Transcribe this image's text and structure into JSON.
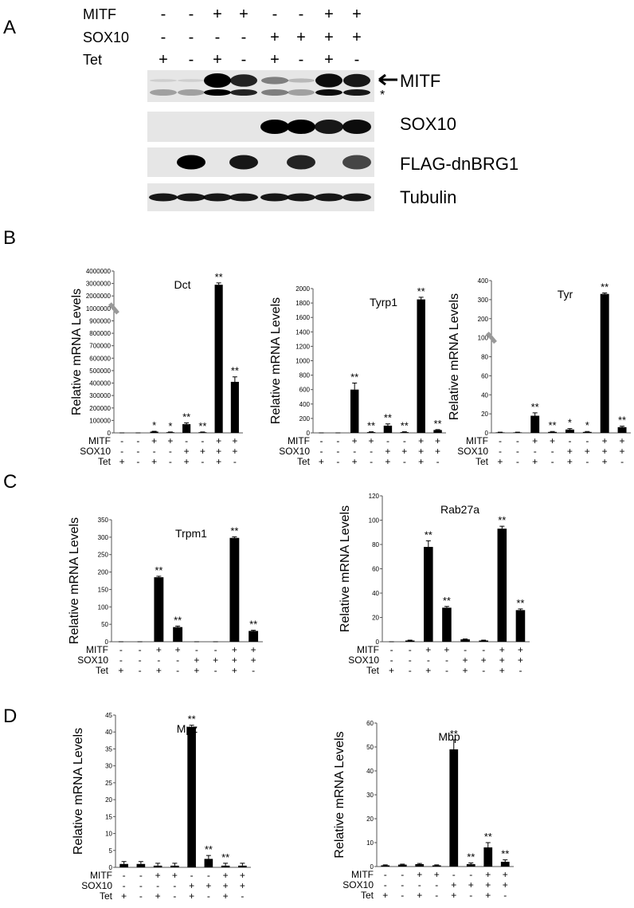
{
  "panels": [
    "A",
    "B",
    "C",
    "D"
  ],
  "blot": {
    "rows": [
      {
        "name": "MITF",
        "signs": [
          "-",
          "-",
          "+",
          "+",
          "-",
          "-",
          "+",
          "+"
        ]
      },
      {
        "name": "SOX10",
        "signs": [
          "-",
          "-",
          "-",
          "-",
          "+",
          "+",
          "+",
          "+"
        ]
      },
      {
        "name": "Tet",
        "signs": [
          "+",
          "-",
          "+",
          "-",
          "+",
          "-",
          "+",
          "-"
        ]
      }
    ],
    "bands": [
      "MITF",
      "SOX10",
      "FLAG-dnBRG1",
      "Tubulin"
    ],
    "nonspecific_mark": "*"
  },
  "chart_data": [
    {
      "type": "bar",
      "title": "Dct",
      "y_label": "Relative mRNA Levels",
      "color": "#000000",
      "axis_break": true,
      "conditions": [
        {
          "name": "MITF",
          "signs": [
            "-",
            "-",
            "+",
            "+",
            "-",
            "-",
            "+",
            "+"
          ]
        },
        {
          "name": "SOX10",
          "signs": [
            "-",
            "-",
            "-",
            "-",
            "+",
            "+",
            "+",
            "+"
          ]
        },
        {
          "name": "Tet",
          "signs": [
            "+",
            "-",
            "+",
            "-",
            "+",
            "-",
            "+",
            "-"
          ]
        }
      ],
      "values": [
        0,
        0,
        10000,
        5000,
        70000,
        5000,
        2900000,
        410000
      ],
      "errors": [
        0,
        0,
        3000,
        2000,
        10000,
        2000,
        150000,
        40000
      ],
      "significance": [
        null,
        null,
        "*",
        "*",
        "**",
        "**",
        "**",
        "**"
      ],
      "ylim": [
        0,
        4000000
      ],
      "yticks": [
        0,
        100000,
        200000,
        300000,
        400000,
        500000,
        600000,
        700000,
        800000,
        900000,
        1000000,
        2000000,
        3000000,
        4000000
      ]
    },
    {
      "type": "bar",
      "title": "Tyrp1",
      "y_label": "Relative mRNA Levels",
      "color": "#000000",
      "axis_break": false,
      "conditions": [
        {
          "name": "MITF",
          "signs": [
            "-",
            "-",
            "+",
            "+",
            "-",
            "-",
            "+",
            "+"
          ]
        },
        {
          "name": "SOX10",
          "signs": [
            "-",
            "-",
            "-",
            "-",
            "+",
            "+",
            "+",
            "+"
          ]
        },
        {
          "name": "Tet",
          "signs": [
            "+",
            "-",
            "+",
            "-",
            "+",
            "-",
            "+",
            "-"
          ]
        }
      ],
      "values": [
        0,
        0,
        600,
        10,
        100,
        10,
        1850,
        40
      ],
      "errors": [
        0,
        0,
        90,
        5,
        25,
        5,
        30,
        5
      ],
      "significance": [
        null,
        null,
        "**",
        "**",
        "**",
        "**",
        "**",
        "**"
      ],
      "ylim": [
        0,
        2000
      ],
      "yticks": [
        0,
        200,
        400,
        600,
        800,
        1000,
        1200,
        1400,
        1600,
        1800,
        2000
      ]
    },
    {
      "type": "bar",
      "title": "Tyr",
      "y_label": "Relative mRNA Levels",
      "color": "#000000",
      "axis_break": true,
      "conditions": [
        {
          "name": "MITF",
          "signs": [
            "-",
            "-",
            "+",
            "+",
            "-",
            "-",
            "+",
            "+"
          ]
        },
        {
          "name": "SOX10",
          "signs": [
            "-",
            "-",
            "-",
            "-",
            "+",
            "+",
            "+",
            "+"
          ]
        },
        {
          "name": "Tet",
          "signs": [
            "+",
            "-",
            "+",
            "-",
            "+",
            "-",
            "+",
            "-"
          ]
        }
      ],
      "values": [
        0.5,
        0.5,
        18,
        1,
        3.5,
        1,
        330,
        6
      ],
      "errors": [
        0.2,
        0.2,
        3,
        0.5,
        1,
        0.5,
        5,
        1
      ],
      "significance": [
        null,
        null,
        "**",
        "**",
        "*",
        "*",
        "**",
        "**"
      ],
      "ylim": [
        0,
        400
      ],
      "yticks": [
        0,
        20,
        40,
        60,
        80,
        100,
        200,
        300,
        400
      ]
    },
    {
      "type": "bar",
      "title": "Trpm1",
      "y_label": "Relative mRNA Levels",
      "color": "#000000",
      "axis_break": false,
      "conditions": [
        {
          "name": "MITF",
          "signs": [
            "-",
            "-",
            "+",
            "+",
            "-",
            "-",
            "+",
            "+"
          ]
        },
        {
          "name": "SOX10",
          "signs": [
            "-",
            "-",
            "-",
            "-",
            "+",
            "+",
            "+",
            "+"
          ]
        },
        {
          "name": "Tet",
          "signs": [
            "+",
            "-",
            "+",
            "-",
            "+",
            "-",
            "+",
            "-"
          ]
        }
      ],
      "values": [
        0,
        0,
        185,
        42,
        0,
        0,
        298,
        31
      ],
      "errors": [
        0,
        0,
        3,
        3,
        0,
        0,
        3,
        2
      ],
      "significance": [
        null,
        null,
        "**",
        "**",
        null,
        null,
        "**",
        "**"
      ],
      "ylim": [
        0,
        350
      ],
      "yticks": [
        0,
        50,
        100,
        150,
        200,
        250,
        300,
        350
      ]
    },
    {
      "type": "bar",
      "title": "Rab27a",
      "y_label": "Relative mRNA Levels",
      "color": "#000000",
      "axis_break": false,
      "conditions": [
        {
          "name": "MITF",
          "signs": [
            "-",
            "-",
            "+",
            "+",
            "-",
            "-",
            "+",
            "+"
          ]
        },
        {
          "name": "SOX10",
          "signs": [
            "-",
            "-",
            "-",
            "-",
            "+",
            "+",
            "+",
            "+"
          ]
        },
        {
          "name": "Tet",
          "signs": [
            "+",
            "-",
            "+",
            "-",
            "+",
            "-",
            "+",
            "-"
          ]
        }
      ],
      "values": [
        0,
        1,
        78,
        28,
        2,
        1,
        93,
        26
      ],
      "errors": [
        0,
        0.3,
        5,
        1,
        0.3,
        0.3,
        2,
        1
      ],
      "significance": [
        null,
        null,
        "**",
        "**",
        null,
        null,
        "**",
        "**"
      ],
      "ylim": [
        0,
        120
      ],
      "yticks": [
        0,
        20,
        40,
        60,
        80,
        100,
        120
      ]
    },
    {
      "type": "bar",
      "title": "Mpz",
      "y_label": "Relative mRNA Levels",
      "color": "#000000",
      "axis_break": false,
      "conditions": [
        {
          "name": "MITF",
          "signs": [
            "-",
            "-",
            "+",
            "+",
            "-",
            "-",
            "+",
            "+"
          ]
        },
        {
          "name": "SOX10",
          "signs": [
            "-",
            "-",
            "-",
            "-",
            "+",
            "+",
            "+",
            "+"
          ]
        },
        {
          "name": "Tet",
          "signs": [
            "+",
            "-",
            "+",
            "-",
            "+",
            "-",
            "+",
            "-"
          ]
        }
      ],
      "values": [
        1,
        1,
        0.5,
        0.5,
        41.5,
        2.5,
        0.5,
        0.5
      ],
      "errors": [
        0.7,
        0.7,
        0.7,
        0.7,
        0.5,
        1,
        0.7,
        0.7
      ],
      "significance": [
        null,
        null,
        null,
        null,
        "**",
        "**",
        "**",
        null
      ],
      "ylim": [
        0,
        45
      ],
      "yticks": [
        0,
        5,
        10,
        15,
        20,
        25,
        30,
        35,
        40,
        45
      ]
    },
    {
      "type": "bar",
      "title": "Mbp",
      "y_label": "Relative mRNA Levels",
      "color": "#000000",
      "axis_break": false,
      "conditions": [
        {
          "name": "MITF",
          "signs": [
            "-",
            "-",
            "+",
            "+",
            "-",
            "-",
            "+",
            "+"
          ]
        },
        {
          "name": "SOX10",
          "signs": [
            "-",
            "-",
            "-",
            "-",
            "+",
            "+",
            "+",
            "+"
          ]
        },
        {
          "name": "Tet",
          "signs": [
            "+",
            "-",
            "+",
            "-",
            "+",
            "-",
            "+",
            "-"
          ]
        }
      ],
      "values": [
        0.5,
        0.8,
        1,
        0.5,
        49,
        1,
        8,
        2
      ],
      "errors": [
        0.2,
        0.2,
        0.3,
        0.2,
        4,
        0.5,
        2,
        0.8
      ],
      "significance": [
        null,
        null,
        null,
        null,
        "**",
        "**",
        "**",
        "**"
      ],
      "ylim": [
        0,
        60
      ],
      "yticks": [
        0,
        10,
        20,
        30,
        40,
        50,
        60
      ]
    }
  ]
}
